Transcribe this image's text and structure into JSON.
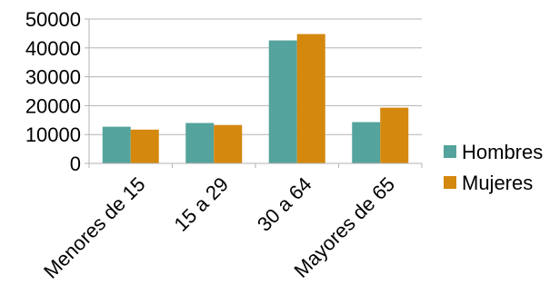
{
  "chart_data": {
    "type": "bar",
    "title": "",
    "xlabel": "",
    "ylabel": "",
    "categories": [
      "Menores de 15",
      "15 a 29",
      "30 a 64",
      "Mayores de 65"
    ],
    "series": [
      {
        "name": "Hombres",
        "values": [
          12700,
          14000,
          42600,
          14300
        ]
      },
      {
        "name": "Mujeres",
        "values": [
          11700,
          13300,
          44800,
          19300
        ]
      }
    ],
    "ylim": [
      0,
      50000
    ],
    "yticks": [
      0,
      10000,
      20000,
      30000,
      40000,
      50000
    ],
    "grid": true,
    "legend_position": "right",
    "colors": [
      "#55a39d",
      "#d4880d"
    ]
  }
}
